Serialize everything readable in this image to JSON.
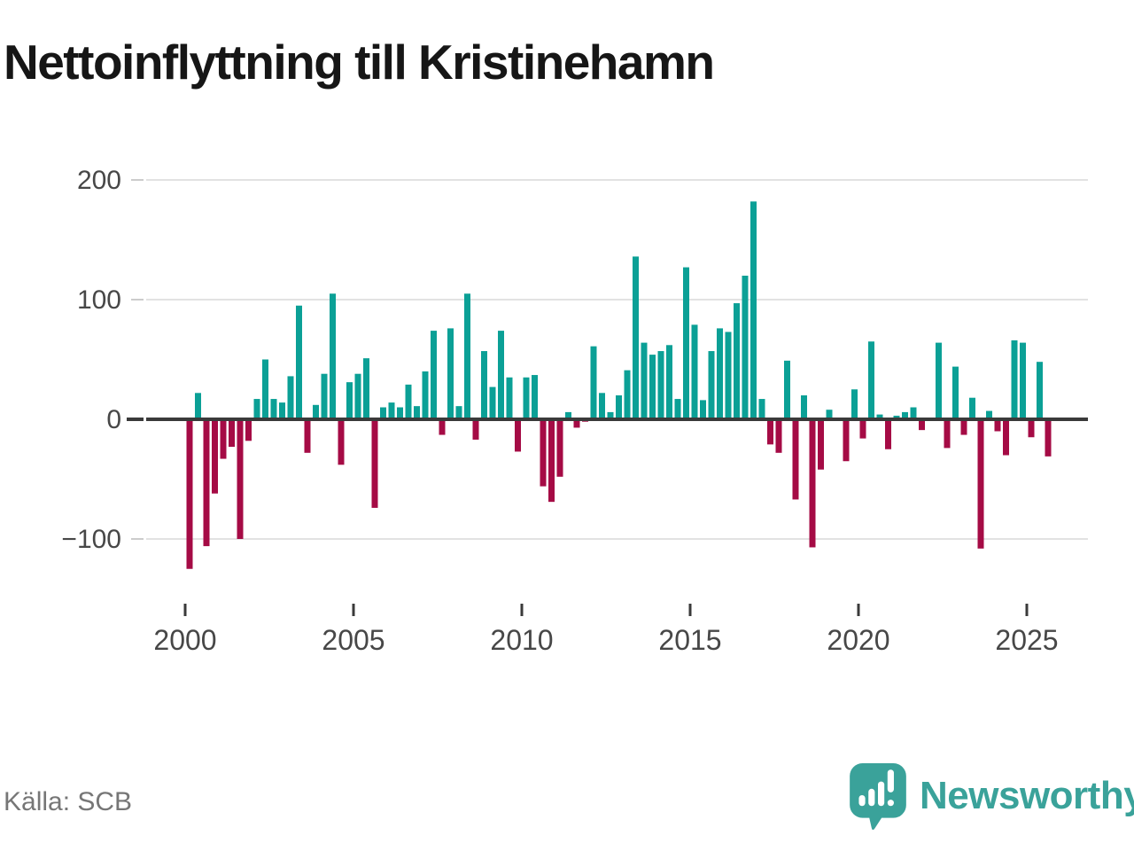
{
  "title": "Nettoinflyttning till Kristinehamn",
  "source": "Källa: SCB",
  "brand": {
    "name": "Newsworthy",
    "icon": "newsworthy-speech-bubble-barchart-icon",
    "color": "#3aa29a"
  },
  "chart_data": {
    "type": "bar",
    "title": "Nettoinflyttning till Kristinehamn",
    "frequency": "quarterly",
    "start": "2000-Q1",
    "end": "2025-Q3",
    "xlabel": "",
    "ylabel": "",
    "yticks": [
      200,
      100,
      0,
      -100
    ],
    "ylim": [
      -150,
      210
    ],
    "xticks": [
      2000,
      2005,
      2010,
      2015,
      2020,
      2025
    ],
    "grid": "horizontal",
    "positive_color": "#0ba096",
    "negative_color": "#a50b45",
    "axis_color": "#3a3a3a",
    "gridline_color": "#e2e2e2",
    "tick_label_color": "#474747",
    "series": [
      {
        "name": "Nettoinflyttning",
        "values": [
          -125,
          22,
          -106,
          -62,
          -33,
          -23,
          -100,
          -18,
          17,
          50,
          17,
          14,
          36,
          95,
          -28,
          12,
          38,
          105,
          -38,
          31,
          38,
          51,
          -74,
          10,
          14,
          10,
          29,
          11,
          40,
          74,
          -13,
          76,
          11,
          105,
          -17,
          57,
          27,
          74,
          35,
          -27,
          35,
          37,
          -56,
          -69,
          -48,
          6,
          -7,
          -2,
          61,
          22,
          6,
          20,
          41,
          136,
          64,
          54,
          57,
          62,
          17,
          127,
          79,
          16,
          57,
          76,
          73,
          97,
          120,
          182,
          17,
          -21,
          -28,
          49,
          -67,
          20,
          -107,
          -42,
          8,
          0,
          -35,
          25,
          -16,
          65,
          4,
          -25,
          3,
          6,
          10,
          -9,
          0,
          64,
          -24,
          44,
          -13,
          18,
          -108,
          7,
          -10,
          -30,
          66,
          64,
          -15,
          48,
          -31
        ]
      }
    ]
  }
}
